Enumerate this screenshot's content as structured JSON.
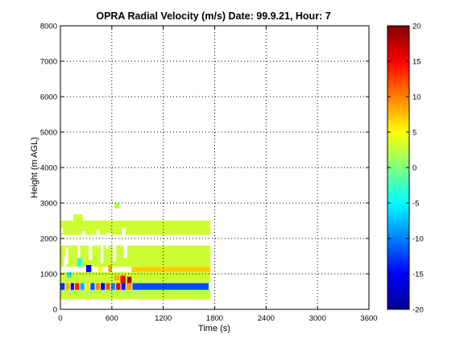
{
  "chart_data": {
    "type": "heatmap",
    "title": "OPRA Radial Velocity (m/s)  Date: 99.9.21, Hour: 7",
    "xlabel": "Time (s)",
    "ylabel": "Height (m AGL)",
    "xlim": [
      0,
      3600
    ],
    "ylim": [
      0,
      8000
    ],
    "xticks": [
      0,
      600,
      1200,
      1800,
      2400,
      3000,
      3600
    ],
    "yticks": [
      0,
      1000,
      2000,
      3000,
      4000,
      5000,
      6000,
      7000,
      8000
    ],
    "grid": true,
    "colorbar": {
      "colormap": "jet",
      "range": [
        -20,
        20
      ],
      "ticks": [
        -20,
        -15,
        -10,
        -5,
        0,
        5,
        10,
        15,
        20
      ]
    },
    "cells": [
      {
        "t0": 0,
        "t1": 1750,
        "h0": 280,
        "h1": 420,
        "v": 3
      },
      {
        "t0": 0,
        "t1": 1750,
        "h0": 420,
        "h1": 550,
        "v": 2
      },
      {
        "t0": 840,
        "t1": 1730,
        "h0": 550,
        "h1": 740,
        "v": -12
      },
      {
        "t0": 0,
        "t1": 1750,
        "h0": 740,
        "h1": 1050,
        "v": 3
      },
      {
        "t0": 830,
        "t1": 1750,
        "h0": 1050,
        "h1": 1200,
        "v": 7
      },
      {
        "t0": 0,
        "t1": 1750,
        "h0": 1200,
        "h1": 1800,
        "v": 3
      },
      {
        "t0": 0,
        "t1": 1750,
        "h0": 2100,
        "h1": 2300,
        "v": 3
      },
      {
        "t0": 0,
        "t1": 1750,
        "h0": 2300,
        "h1": 2500,
        "v": 3
      },
      {
        "t0": 150,
        "t1": 260,
        "h0": 2500,
        "h1": 2680,
        "v": 3
      },
      {
        "t0": 630,
        "t1": 690,
        "h0": 2850,
        "h1": 3000,
        "v": 2
      },
      {
        "t0": 0,
        "t1": 50,
        "h0": 550,
        "h1": 740,
        "v": -13
      },
      {
        "t0": 60,
        "t1": 110,
        "h0": 550,
        "h1": 740,
        "v": 8
      },
      {
        "t0": 120,
        "t1": 160,
        "h0": 550,
        "h1": 740,
        "v": -15
      },
      {
        "t0": 170,
        "t1": 220,
        "h0": 550,
        "h1": 740,
        "v": 14
      },
      {
        "t0": 230,
        "t1": 280,
        "h0": 550,
        "h1": 740,
        "v": -8
      },
      {
        "t0": 290,
        "t1": 340,
        "h0": 550,
        "h1": 740,
        "v": 6
      },
      {
        "t0": 350,
        "t1": 400,
        "h0": 550,
        "h1": 740,
        "v": -12
      },
      {
        "t0": 410,
        "t1": 460,
        "h0": 550,
        "h1": 740,
        "v": 10
      },
      {
        "t0": 470,
        "t1": 520,
        "h0": 550,
        "h1": 740,
        "v": -17
      },
      {
        "t0": 530,
        "t1": 580,
        "h0": 550,
        "h1": 740,
        "v": 12
      },
      {
        "t0": 590,
        "t1": 640,
        "h0": 550,
        "h1": 740,
        "v": -10
      },
      {
        "t0": 650,
        "t1": 700,
        "h0": 550,
        "h1": 740,
        "v": 16
      },
      {
        "t0": 710,
        "t1": 760,
        "h0": 550,
        "h1": 740,
        "v": -14
      },
      {
        "t0": 770,
        "t1": 830,
        "h0": 550,
        "h1": 740,
        "v": 9
      },
      {
        "t0": 700,
        "t1": 760,
        "h0": 740,
        "h1": 950,
        "v": 15
      },
      {
        "t0": 780,
        "t1": 830,
        "h0": 740,
        "h1": 920,
        "v": 18
      },
      {
        "t0": 630,
        "t1": 690,
        "h0": 820,
        "h1": 960,
        "v": 8
      },
      {
        "t0": 300,
        "t1": 360,
        "h0": 1050,
        "h1": 1250,
        "v": -15
      },
      {
        "t0": 560,
        "t1": 600,
        "h0": 1050,
        "h1": 1250,
        "v": 9
      },
      {
        "t0": 80,
        "t1": 130,
        "h0": 900,
        "h1": 1050,
        "v": -6
      },
      {
        "t0": 440,
        "t1": 490,
        "h0": 1050,
        "h1": 1200,
        "v": 5
      },
      {
        "t0": 200,
        "t1": 250,
        "h0": 1200,
        "h1": 1450,
        "v": -4
      }
    ],
    "gaps": [
      {
        "t0": 60,
        "t1": 90,
        "h0": 1250,
        "h1": 1750
      },
      {
        "t0": 200,
        "t1": 230,
        "h0": 1450,
        "h1": 1800
      },
      {
        "t0": 330,
        "t1": 370,
        "h0": 1400,
        "h1": 1800
      },
      {
        "t0": 470,
        "t1": 500,
        "h0": 1300,
        "h1": 1800
      },
      {
        "t0": 610,
        "t1": 650,
        "h0": 1350,
        "h1": 1800
      },
      {
        "t0": 740,
        "t1": 780,
        "h0": 1450,
        "h1": 1800
      },
      {
        "t0": 100,
        "t1": 130,
        "h0": 1900,
        "h1": 2100
      },
      {
        "t0": 250,
        "t1": 290,
        "h0": 1800,
        "h1": 2200
      },
      {
        "t0": 420,
        "t1": 460,
        "h0": 1800,
        "h1": 2250
      },
      {
        "t0": 560,
        "t1": 600,
        "h0": 1800,
        "h1": 2150
      },
      {
        "t0": 720,
        "t1": 760,
        "h0": 1800,
        "h1": 2300
      },
      {
        "t0": 0,
        "t1": 30,
        "h0": 2150,
        "h1": 2300
      },
      {
        "t0": 40,
        "t1": 60,
        "h0": 1050,
        "h1": 1500
      },
      {
        "t0": 530,
        "t1": 560,
        "h0": 1700,
        "h1": 2150
      }
    ]
  }
}
